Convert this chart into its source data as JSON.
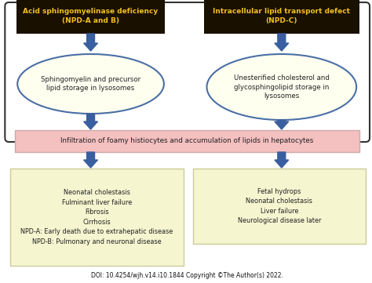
{
  "bg_color": "#ffffff",
  "outer_border_color": "#333333",
  "top_box_bg": "#1a1000",
  "top_box_text_color": "#f0c020",
  "top_left_title": "Acid sphingomyelinase deficiency\n(NPD-A and B)",
  "top_right_title": "Intracellular lipid transport defect\n(NPD-C)",
  "ellipse_bg": "#fffff0",
  "ellipse_border": "#4a6fa5",
  "ellipse_left_text": "Sphingomyelin and precursor\nlipid storage in lysosomes",
  "ellipse_right_text": "Unesterified cholesterol and\nglycosphingolipid storage in\nlysosomes",
  "mid_box_bg": "#f5c0c0",
  "mid_box_border": "#ccaaaa",
  "mid_box_text": "Infiltration of foamy histiocytes and accumulation of lipids in hepatocytes",
  "bottom_box_bg": "#f5f5d0",
  "bottom_box_border": "#cccc99",
  "bottom_left_text": "Neonatal cholestasis\nFulminant liver failure\nFibrosis\nCirrhosis\nNPD-A: Early death due to extrahepatic disease\nNPD-B: Pulmonary and neuronal disease",
  "bottom_right_text": "Fetal hydrops\nNeonatal cholestasis\nLiver failure\nNeurological disease later",
  "arrow_color": "#3a5fa0",
  "doi_bold": "DOI:",
  "doi_normal": " 10.4254/wjh.v14.i10.1844 ",
  "doi_bold2": "Copyright",
  "doi_normal2": " ©The Author(s) 2022."
}
